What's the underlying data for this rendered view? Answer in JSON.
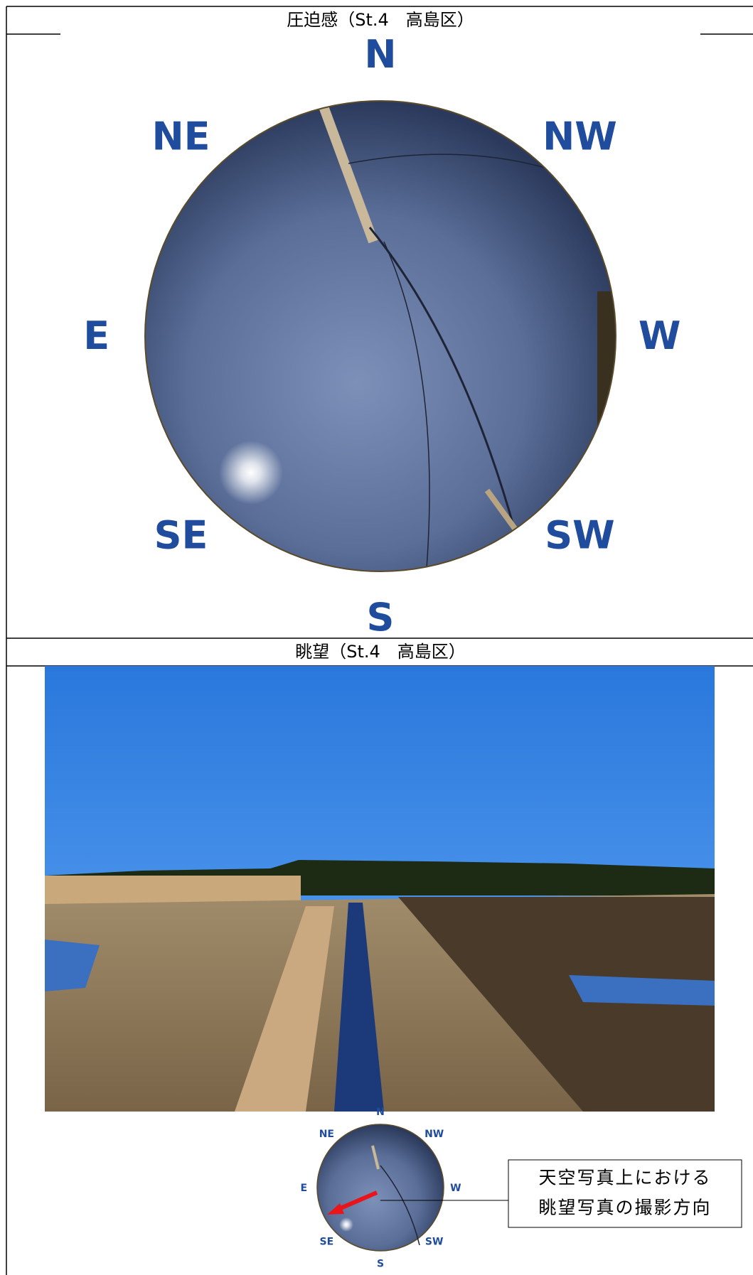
{
  "sky_view": {
    "title": "圧迫感（St.4　高島区）",
    "directions": [
      "N",
      "NE",
      "NW",
      "E",
      "W",
      "SE",
      "SW",
      "S"
    ]
  },
  "landscape_view": {
    "title": "眺望（St.4　高島区）",
    "inset_directions": [
      "N",
      "NE",
      "NW",
      "E",
      "W",
      "SE",
      "SW",
      "S"
    ],
    "callout": [
      "天空写真上における",
      "眺望写真の撮影方向"
    ]
  }
}
